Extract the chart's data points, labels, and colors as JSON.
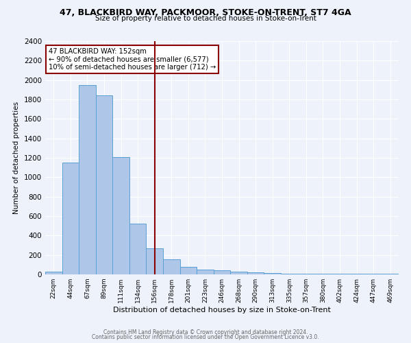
{
  "title1": "47, BLACKBIRD WAY, PACKMOOR, STOKE-ON-TRENT, ST7 4GA",
  "title2": "Size of property relative to detached houses in Stoke-on-Trent",
  "xlabel": "Distribution of detached houses by size in Stoke-on-Trent",
  "ylabel": "Number of detached properties",
  "categories": [
    "22sqm",
    "44sqm",
    "67sqm",
    "89sqm",
    "111sqm",
    "134sqm",
    "156sqm",
    "178sqm",
    "201sqm",
    "223sqm",
    "246sqm",
    "268sqm",
    "290sqm",
    "313sqm",
    "335sqm",
    "357sqm",
    "380sqm",
    "402sqm",
    "424sqm",
    "447sqm",
    "469sqm"
  ],
  "values": [
    30,
    1150,
    1950,
    1840,
    1210,
    520,
    265,
    155,
    80,
    50,
    45,
    30,
    20,
    15,
    10,
    10,
    5,
    5,
    5,
    5,
    5
  ],
  "bar_color": "#aec6e8",
  "bar_edge_color": "#5a9fd4",
  "vline_x_index": 6,
  "vline_color": "#8b0000",
  "annotation_text": "47 BLACKBIRD WAY: 152sqm\n← 90% of detached houses are smaller (6,577)\n10% of semi-detached houses are larger (712) →",
  "annotation_box_color": "#ffffff",
  "annotation_box_edge": "#8b0000",
  "ylim": [
    0,
    2400
  ],
  "yticks": [
    0,
    200,
    400,
    600,
    800,
    1000,
    1200,
    1400,
    1600,
    1800,
    2000,
    2200,
    2400
  ],
  "background_color": "#eef2fb",
  "grid_color": "#ffffff",
  "footer1": "Contains HM Land Registry data © Crown copyright and database right 2024.",
  "footer2": "Contains public sector information licensed under the Open Government Licence v3.0."
}
